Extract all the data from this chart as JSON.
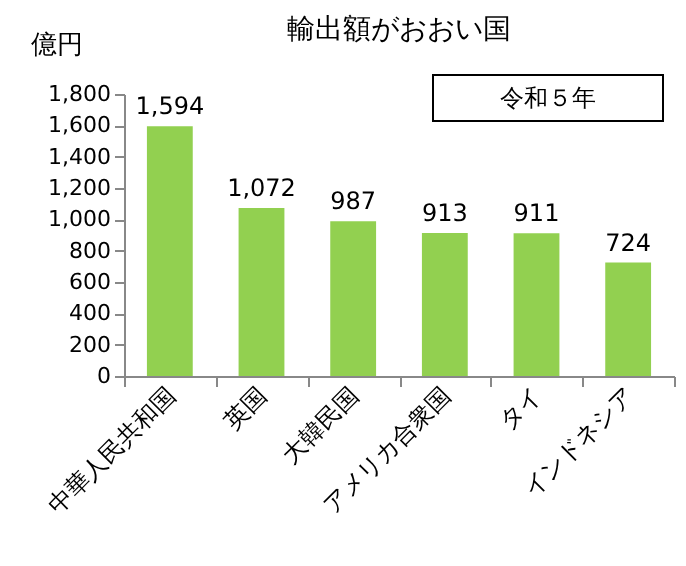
{
  "chart_data": {
    "type": "bar",
    "title": "輸出額がおおい国",
    "ylabel": "億円",
    "annotations": [
      "令和５年"
    ],
    "categories": [
      "中華人民共和国",
      "英国",
      "大韓民国",
      "アメリカ合衆国",
      "タイ",
      "インドネシア"
    ],
    "values": [
      1594,
      1072,
      987,
      913,
      911,
      724
    ],
    "value_labels": [
      "1,594",
      "1,072",
      "987",
      "913",
      "911",
      "724"
    ],
    "color": "#92d050",
    "ylim": [
      0,
      1800
    ],
    "yticks": [
      0,
      200,
      400,
      600,
      800,
      {
        "value": 1000,
        "label": "1,000"
      },
      {
        "value": 1200,
        "label": "1,200"
      },
      {
        "value": 1400,
        "label": "1,400"
      },
      {
        "value": 1600,
        "label": "1,600"
      },
      {
        "value": 1800,
        "label": "1,800"
      }
    ],
    "grid": false
  }
}
